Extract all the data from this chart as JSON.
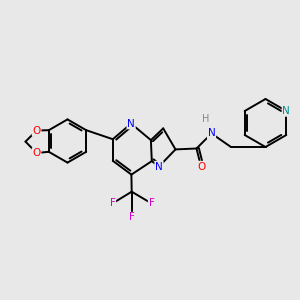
{
  "bg": "#e8e8e8",
  "C": "#000000",
  "N": "#0000ff",
  "O": "#ff0000",
  "F": "#cc00cc",
  "H": "#888888",
  "Npyr": "#008b8b",
  "figsize": [
    3.0,
    3.0
  ],
  "dpi": 100
}
